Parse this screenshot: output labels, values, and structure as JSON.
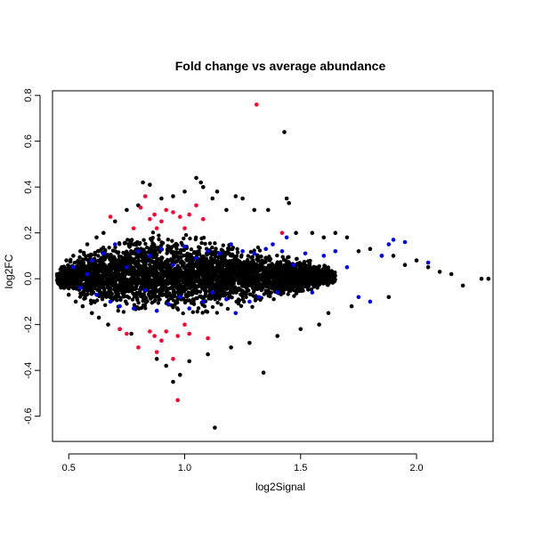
{
  "chart_data": {
    "type": "scatter",
    "title": "Fold change vs average abundance",
    "xlabel": "log2Signal",
    "ylabel": "log2FC",
    "xlim": [
      0.43,
      2.33
    ],
    "ylim": [
      -0.71,
      0.82
    ],
    "x_ticks": [
      0.5,
      1.0,
      1.5,
      2.0
    ],
    "x_tick_labels": [
      "0.5",
      "1.0",
      "1.5",
      "2.0"
    ],
    "y_ticks": [
      -0.6,
      -0.4,
      -0.2,
      0.0,
      0.2,
      0.4,
      0.6,
      0.8
    ],
    "y_tick_labels": [
      "-0.6",
      "-0.4",
      "-0.2",
      "0.0",
      "0.2",
      "0.4",
      "0.6",
      "0.8"
    ],
    "grid": false,
    "legend": "none",
    "colors": {
      "other": "#000000",
      "highlight_blue": "#0000ff",
      "highlight_red": "#ff0033"
    },
    "series": [
      {
        "color": "#000000",
        "points": [
          [
            0.45,
            0.02
          ],
          [
            0.46,
            -0.02
          ],
          [
            0.47,
            0.05
          ],
          [
            0.48,
            -0.04
          ],
          [
            0.49,
            0.08
          ],
          [
            0.5,
            -0.07
          ],
          [
            0.52,
            0.1
          ],
          [
            0.53,
            -0.1
          ],
          [
            0.55,
            0.12
          ],
          [
            0.56,
            -0.12
          ],
          [
            0.58,
            0.15
          ],
          [
            0.6,
            -0.15
          ],
          [
            0.62,
            0.18
          ],
          [
            0.63,
            -0.17
          ],
          [
            0.65,
            0.2
          ],
          [
            0.67,
            -0.2
          ],
          [
            0.7,
            0.25
          ],
          [
            0.72,
            -0.22
          ],
          [
            0.75,
            0.3
          ],
          [
            0.77,
            -0.24
          ],
          [
            0.8,
            0.32
          ],
          [
            0.82,
            0.42
          ],
          [
            0.85,
            0.41
          ],
          [
            0.88,
            -0.35
          ],
          [
            0.9,
            0.35
          ],
          [
            0.92,
            -0.38
          ],
          [
            0.95,
            0.36
          ],
          [
            0.95,
            -0.45
          ],
          [
            0.98,
            -0.42
          ],
          [
            1.0,
            0.38
          ],
          [
            1.02,
            -0.36
          ],
          [
            1.05,
            0.44
          ],
          [
            1.07,
            0.42
          ],
          [
            1.08,
            0.4
          ],
          [
            1.1,
            -0.33
          ],
          [
            1.12,
            0.35
          ],
          [
            1.14,
            0.38
          ],
          [
            1.13,
            -0.65
          ],
          [
            1.18,
            0.3
          ],
          [
            1.2,
            -0.3
          ],
          [
            1.22,
            0.36
          ],
          [
            1.25,
            0.35
          ],
          [
            1.28,
            -0.28
          ],
          [
            1.3,
            0.3
          ],
          [
            1.34,
            -0.41
          ],
          [
            1.36,
            0.3
          ],
          [
            1.43,
            0.64
          ],
          [
            1.44,
            0.35
          ],
          [
            1.45,
            0.33
          ],
          [
            1.4,
            -0.25
          ],
          [
            1.48,
            0.2
          ],
          [
            1.5,
            -0.22
          ],
          [
            1.55,
            0.2
          ],
          [
            1.58,
            -0.2
          ],
          [
            1.6,
            0.18
          ],
          [
            1.62,
            -0.15
          ],
          [
            1.65,
            0.2
          ],
          [
            1.7,
            0.18
          ],
          [
            1.72,
            -0.12
          ],
          [
            1.75,
            0.12
          ],
          [
            1.8,
            0.13
          ],
          [
            1.85,
            0.1
          ],
          [
            1.88,
            -0.08
          ],
          [
            1.9,
            0.1
          ],
          [
            1.95,
            0.06
          ],
          [
            2.0,
            0.08
          ],
          [
            2.05,
            0.05
          ],
          [
            2.1,
            0.03
          ],
          [
            2.15,
            0.02
          ],
          [
            2.2,
            -0.03
          ],
          [
            2.28,
            0.0
          ],
          [
            2.31,
            0.0
          ]
        ]
      },
      {
        "color": "#0000ff",
        "points": [
          [
            0.52,
            0.05
          ],
          [
            0.55,
            -0.04
          ],
          [
            0.58,
            0.02
          ],
          [
            0.6,
            0.08
          ],
          [
            0.62,
            -0.07
          ],
          [
            0.65,
            0.11
          ],
          [
            0.68,
            -0.1
          ],
          [
            0.7,
            0.15
          ],
          [
            0.72,
            -0.12
          ],
          [
            0.75,
            0.05
          ],
          [
            0.78,
            -0.13
          ],
          [
            0.8,
            0.12
          ],
          [
            0.83,
            -0.05
          ],
          [
            0.85,
            0.1
          ],
          [
            0.88,
            -0.14
          ],
          [
            0.9,
            0.13
          ],
          [
            0.93,
            -0.11
          ],
          [
            0.95,
            0.06
          ],
          [
            0.98,
            -0.08
          ],
          [
            1.0,
            0.14
          ],
          [
            1.02,
            -0.13
          ],
          [
            1.05,
            0.09
          ],
          [
            1.08,
            -0.1
          ],
          [
            1.1,
            0.12
          ],
          [
            1.12,
            -0.06
          ],
          [
            1.15,
            0.11
          ],
          [
            1.18,
            -0.09
          ],
          [
            1.2,
            0.15
          ],
          [
            1.22,
            -0.15
          ],
          [
            1.25,
            0.12
          ],
          [
            1.28,
            -0.1
          ],
          [
            1.3,
            0.11
          ],
          [
            1.32,
            -0.08
          ],
          [
            1.35,
            0.13
          ],
          [
            1.38,
            0.15
          ],
          [
            1.4,
            -0.06
          ],
          [
            1.42,
            0.12
          ],
          [
            1.44,
            0.18
          ],
          [
            1.47,
            0.06
          ],
          [
            1.52,
            0.11
          ],
          [
            1.55,
            -0.06
          ],
          [
            1.6,
            0.1
          ],
          [
            1.65,
            0.12
          ],
          [
            1.7,
            0.05
          ],
          [
            1.75,
            -0.08
          ],
          [
            1.8,
            -0.1
          ],
          [
            1.85,
            0.1
          ],
          [
            1.88,
            0.15
          ],
          [
            1.9,
            0.17
          ],
          [
            1.95,
            0.16
          ],
          [
            2.05,
            0.07
          ]
        ]
      },
      {
        "color": "#ff0033",
        "points": [
          [
            1.31,
            0.76
          ],
          [
            0.68,
            0.27
          ],
          [
            0.78,
            0.22
          ],
          [
            0.81,
            0.31
          ],
          [
            0.83,
            0.36
          ],
          [
            0.85,
            0.26
          ],
          [
            0.87,
            0.28
          ],
          [
            0.88,
            0.22
          ],
          [
            0.9,
            0.25
          ],
          [
            0.92,
            0.3
          ],
          [
            0.95,
            0.29
          ],
          [
            0.98,
            0.27
          ],
          [
            1.02,
            0.28
          ],
          [
            1.05,
            0.32
          ],
          [
            1.08,
            0.26
          ],
          [
            1.0,
            0.22
          ],
          [
            0.72,
            -0.22
          ],
          [
            0.75,
            -0.24
          ],
          [
            0.8,
            -0.3
          ],
          [
            0.85,
            -0.23
          ],
          [
            0.87,
            -0.25
          ],
          [
            0.88,
            -0.32
          ],
          [
            0.9,
            -0.27
          ],
          [
            0.92,
            -0.23
          ],
          [
            0.95,
            -0.35
          ],
          [
            0.97,
            -0.25
          ],
          [
            1.0,
            -0.2
          ],
          [
            1.02,
            -0.24
          ],
          [
            1.1,
            -0.26
          ],
          [
            0.97,
            -0.53
          ],
          [
            1.42,
            0.2
          ]
        ]
      }
    ],
    "dense_band": {
      "color": "#000000",
      "envelope": [
        [
          0.45,
          -0.03,
          0.03
        ],
        [
          0.5,
          -0.08,
          0.09
        ],
        [
          0.6,
          -0.14,
          0.16
        ],
        [
          0.7,
          -0.18,
          0.2
        ],
        [
          0.8,
          -0.19,
          0.23
        ],
        [
          0.9,
          -0.19,
          0.23
        ],
        [
          1.0,
          -0.19,
          0.22
        ],
        [
          1.1,
          -0.17,
          0.2
        ],
        [
          1.2,
          -0.15,
          0.18
        ],
        [
          1.3,
          -0.13,
          0.16
        ],
        [
          1.4,
          -0.11,
          0.13
        ],
        [
          1.5,
          -0.08,
          0.1
        ],
        [
          1.6,
          -0.05,
          0.07
        ],
        [
          1.65,
          -0.03,
          0.04
        ]
      ]
    }
  }
}
